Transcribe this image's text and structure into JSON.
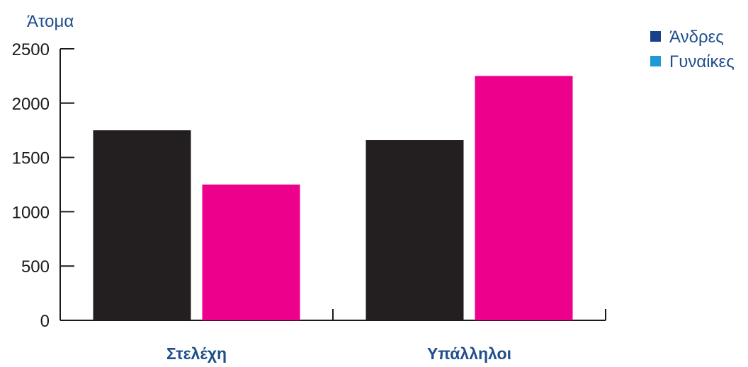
{
  "chart_data": {
    "type": "bar",
    "title": "",
    "ylabel": "Άτομα",
    "xlabel": "",
    "categories": [
      "Στελέχη",
      "Υπάλληλοι"
    ],
    "series": [
      {
        "name": "Άνδρες",
        "values": [
          1750,
          1660
        ],
        "bar_color": "#231f20",
        "legend_color": "#17428a"
      },
      {
        "name": "Γυναίκες",
        "values": [
          1250,
          2250
        ],
        "bar_color": "#ec008c",
        "legend_color": "#1c9bd7"
      }
    ],
    "ylim": [
      0,
      2500
    ],
    "yticks": [
      0,
      500,
      1000,
      1500,
      2000,
      2500
    ],
    "grid": false,
    "legend_position": "top-right"
  }
}
